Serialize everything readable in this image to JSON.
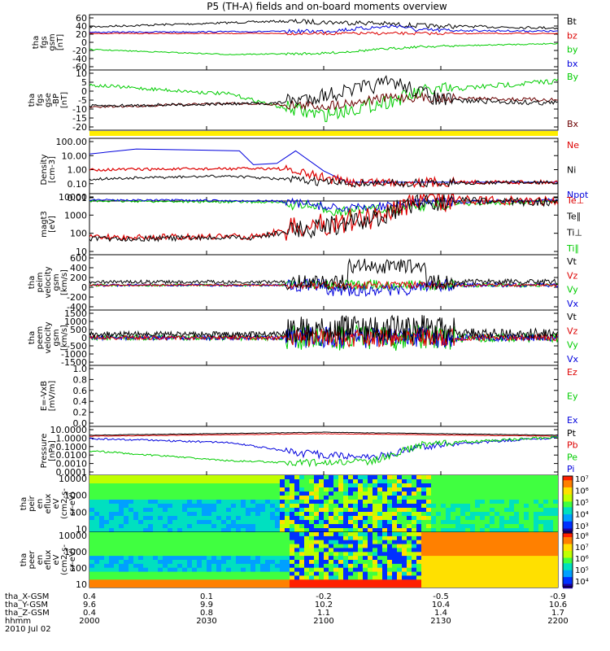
{
  "title": "P5 (TH-A) fields and on-board moments overview",
  "colors": {
    "black": "#000000",
    "red": "#dd0000",
    "green": "#00cc00",
    "blue": "#0000dd",
    "yellow": "#ffee00"
  },
  "panels": [
    {
      "id": "fgs_gsm",
      "ylabel": [
        "tha",
        "fgs",
        "gsm",
        "[nT]"
      ],
      "yticks": [
        "60",
        "40",
        "20",
        "0",
        "-20",
        "-40",
        "-60"
      ],
      "legend": [
        {
          "text": "Bt",
          "color": "black"
        },
        {
          "text": "bz",
          "color": "red"
        },
        {
          "text": "by",
          "color": "green"
        },
        {
          "text": "bx",
          "color": "blue"
        }
      ]
    },
    {
      "id": "fgs_gse",
      "ylabel": [
        "tha",
        "fgs",
        "gse",
        "-BP",
        "[nT]"
      ],
      "yticks": [
        "10",
        "5",
        "0",
        "-5",
        "-10",
        "-15",
        "-20"
      ],
      "legend": [
        {
          "text": "By",
          "color": "green"
        },
        {
          "text": "Bx",
          "color": "dark"
        }
      ]
    },
    {
      "id": "density",
      "ylabel": [
        "Density",
        "[cm-3]"
      ],
      "yticks": [
        "100.00",
        "10.00",
        "1.00",
        "0.10",
        "0.01"
      ],
      "legend": [
        {
          "text": "Ne",
          "color": "red"
        },
        {
          "text": "Ni",
          "color": "black"
        },
        {
          "text": "Npot",
          "color": "blue"
        }
      ]
    },
    {
      "id": "temp",
      "ylabel": [
        "magt3",
        "[eV]"
      ],
      "yticks": [
        "10000",
        "1000",
        "100",
        "10"
      ],
      "legend": [
        {
          "text": "Te⊥",
          "color": "red"
        },
        {
          "text": "Te∥",
          "color": "black"
        },
        {
          "text": "Ti⊥",
          "color": "black"
        },
        {
          "text": "Ti∥",
          "color": "green"
        }
      ]
    },
    {
      "id": "peim_vel",
      "ylabel": [
        "tha",
        "peim",
        "velocity",
        "gsm",
        "[km/s]"
      ],
      "yticks": [
        "600",
        "400",
        "200",
        "0",
        "-200",
        "-400"
      ],
      "legend": [
        {
          "text": "Vt",
          "color": "black"
        },
        {
          "text": "Vz",
          "color": "red"
        },
        {
          "text": "Vy",
          "color": "green"
        },
        {
          "text": "Vx",
          "color": "blue"
        }
      ]
    },
    {
      "id": "peem_vel",
      "ylabel": [
        "tha",
        "peem",
        "velocity",
        "gsm",
        "[km/s]"
      ],
      "yticks": [
        "1500",
        "1000",
        "500",
        "0",
        "-500",
        "-1000",
        "-1500"
      ],
      "legend": [
        {
          "text": "Vt",
          "color": "black"
        },
        {
          "text": "Vz",
          "color": "red"
        },
        {
          "text": "Vy",
          "color": "green"
        },
        {
          "text": "Vx",
          "color": "blue"
        }
      ]
    },
    {
      "id": "efield",
      "ylabel": [
        "E=-VxB",
        "[mV/m]"
      ],
      "yticks": [
        "1.0",
        "0.8",
        "0.6",
        "0.4",
        "0.2",
        "0.0"
      ],
      "legend": [
        {
          "text": "Ez",
          "color": "red"
        },
        {
          "text": "Ey",
          "color": "green"
        },
        {
          "text": "Ex",
          "color": "blue"
        }
      ]
    },
    {
      "id": "pressure",
      "ylabel": [
        "Pressure",
        "[nPa]"
      ],
      "yticks": [
        "10.0000",
        "1.0000",
        "0.1000",
        "0.0100",
        "0.0010",
        "0.0001"
      ],
      "legend": [
        {
          "text": "Pt",
          "color": "black"
        },
        {
          "text": "Pb",
          "color": "red"
        },
        {
          "text": "Pe",
          "color": "green"
        },
        {
          "text": "Pi",
          "color": "blue"
        }
      ]
    },
    {
      "id": "peir_eflux",
      "ylabel": [
        "tha",
        "peir",
        "en",
        "eflux",
        "eV",
        "(cm2-s-",
        "sr-eV)"
      ],
      "yticks": [
        "10000",
        "1000",
        "100",
        "10"
      ],
      "colorbar": [
        "10⁷",
        "10⁶",
        "10⁵",
        "10⁴",
        "10³"
      ]
    },
    {
      "id": "peer_eflux",
      "ylabel": [
        "tha",
        "peer",
        "en",
        "eflux",
        "eV",
        "(cm2-s-",
        "sr-eV)"
      ],
      "yticks": [
        "10000",
        "1000",
        "100",
        "10"
      ],
      "colorbar": [
        "10⁸",
        "10⁷",
        "10⁶",
        "10⁵",
        "10⁴"
      ]
    }
  ],
  "xaxis": {
    "rows": [
      {
        "label": "tha_X-GSM",
        "values": [
          "0.4",
          "0.1",
          "-0.2",
          "-0.5",
          "-0.9"
        ]
      },
      {
        "label": "tha_Y-GSM",
        "values": [
          "9.6",
          "9.9",
          "10.2",
          "10.4",
          "10.6"
        ]
      },
      {
        "label": "tha_Z-GSM",
        "values": [
          "0.4",
          "0.8",
          "1.1",
          "1.4",
          "1.7"
        ]
      },
      {
        "label": "hhmm",
        "values": [
          "2000",
          "2030",
          "2100",
          "2130",
          "2200"
        ]
      }
    ],
    "date": "2010 Jul 02"
  },
  "chart_data": {
    "type": "line",
    "title": "P5 (TH-A) fields and on-board moments overview",
    "x": [
      "2000",
      "2030",
      "2100",
      "2130",
      "2200"
    ],
    "series": [
      {
        "name": "Bt",
        "panel": "fgs_gsm",
        "values": [
          30,
          45,
          50,
          40,
          32
        ]
      },
      {
        "name": "bz",
        "panel": "fgs_gsm",
        "values": [
          20,
          25,
          22,
          18,
          22
        ]
      },
      {
        "name": "by",
        "panel": "fgs_gsm",
        "values": [
          -20,
          -30,
          -25,
          -15,
          -10
        ]
      },
      {
        "name": "bx",
        "panel": "fgs_gsm",
        "values": [
          20,
          25,
          30,
          25,
          22
        ]
      },
      {
        "name": "By",
        "panel": "fgs_gse",
        "values": [
          6,
          3,
          -12,
          6,
          9
        ]
      },
      {
        "name": "Bx",
        "panel": "fgs_gse",
        "values": [
          -9,
          -4,
          -6,
          -1,
          -1
        ]
      },
      {
        "name": "Npot",
        "panel": "density",
        "values": [
          10,
          12,
          1,
          0.3,
          0.3
        ]
      },
      {
        "name": "Ne",
        "panel": "density",
        "values": [
          0.8,
          0.7,
          0.3,
          0.3,
          0.3
        ]
      },
      {
        "name": "Ni",
        "panel": "density",
        "values": [
          0.3,
          0.4,
          0.3,
          0.2,
          0.3
        ]
      },
      {
        "name": "Ti∥",
        "panel": "temp",
        "values": [
          4000,
          5000,
          2000,
          3000,
          3500
        ]
      },
      {
        "name": "Te⊥",
        "panel": "temp",
        "values": [
          60,
          80,
          500,
          4000,
          4000
        ]
      },
      {
        "name": "Vt",
        "panel": "peim_vel",
        "values": [
          20,
          30,
          150,
          50,
          40
        ]
      },
      {
        "name": "Vt",
        "panel": "peem_vel",
        "values": [
          80,
          120,
          700,
          300,
          200
        ]
      },
      {
        "name": "Pt",
        "panel": "pressure",
        "values": [
          0.9,
          1.0,
          1.0,
          1.0,
          1.2
        ]
      },
      {
        "name": "Pi",
        "panel": "pressure",
        "values": [
          0.3,
          0.2,
          0.02,
          0.1,
          0.15
        ]
      },
      {
        "name": "Pe",
        "panel": "pressure",
        "values": [
          0.02,
          0.003,
          0.005,
          0.05,
          0.15
        ]
      }
    ]
  }
}
